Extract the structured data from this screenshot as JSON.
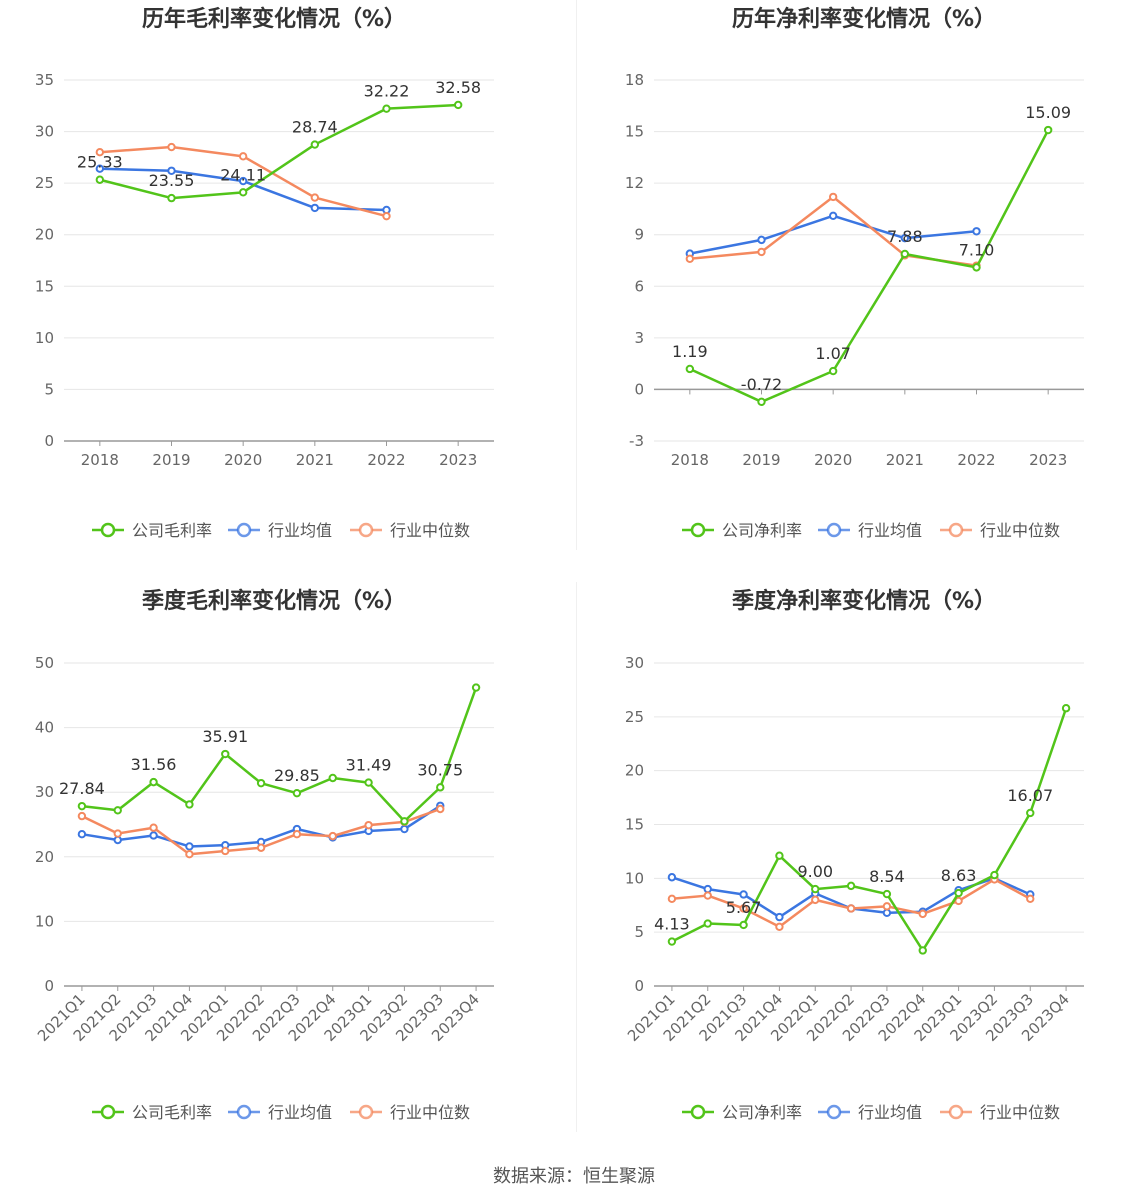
{
  "footer": {
    "source": "数据来源：恒生聚源"
  },
  "colors": {
    "company": "#52c41a",
    "industry_avg": "#3b76e1",
    "industry_median": "#f4895f",
    "grid": "#e6e6e6",
    "axis": "#999999",
    "text": "#666666"
  },
  "chart_data": [
    {
      "type": "line",
      "title": "历年毛利率变化情况（%）",
      "categories": [
        "2018",
        "2019",
        "2020",
        "2021",
        "2022",
        "2023"
      ],
      "ylim": [
        0,
        35
      ],
      "yticks": [
        0,
        5,
        10,
        15,
        20,
        25,
        30,
        35
      ],
      "legend_position": "bottom",
      "series": [
        {
          "name": "公司毛利率",
          "color": "#52c41a",
          "values": [
            25.33,
            23.55,
            24.11,
            28.74,
            32.22,
            32.58
          ],
          "labels": [
            "25.33",
            "23.55",
            "24.11",
            "28.74",
            "32.22",
            "32.58"
          ]
        },
        {
          "name": "行业均值",
          "color": "#3b76e1",
          "values": [
            26.4,
            26.2,
            25.2,
            22.6,
            22.4,
            null
          ]
        },
        {
          "name": "行业中位数",
          "color": "#f4895f",
          "values": [
            28.0,
            28.5,
            27.6,
            23.6,
            21.8,
            null
          ]
        }
      ]
    },
    {
      "type": "line",
      "title": "历年净利率变化情况（%）",
      "categories": [
        "2018",
        "2019",
        "2020",
        "2021",
        "2022",
        "2023"
      ],
      "ylim": [
        -3,
        18
      ],
      "yticks": [
        -3,
        0,
        3,
        6,
        9,
        12,
        15,
        18
      ],
      "legend_position": "bottom",
      "series": [
        {
          "name": "公司净利率",
          "color": "#52c41a",
          "values": [
            1.19,
            -0.72,
            1.07,
            7.88,
            7.1,
            15.09
          ],
          "labels": [
            "1.19",
            "-0.72",
            "1.07",
            "7.88",
            "7.10",
            "15.09"
          ]
        },
        {
          "name": "行业均值",
          "color": "#3b76e1",
          "values": [
            7.9,
            8.7,
            10.1,
            8.8,
            9.2,
            null
          ]
        },
        {
          "name": "行业中位数",
          "color": "#f4895f",
          "values": [
            7.6,
            8.0,
            11.2,
            7.8,
            7.2,
            null
          ]
        }
      ]
    },
    {
      "type": "line",
      "title": "季度毛利率变化情况（%）",
      "categories": [
        "2021Q1",
        "2021Q2",
        "2021Q3",
        "2021Q4",
        "2022Q1",
        "2022Q2",
        "2022Q3",
        "2022Q4",
        "2023Q1",
        "2023Q2",
        "2023Q3",
        "2023Q4"
      ],
      "ylim": [
        0,
        50
      ],
      "yticks": [
        0,
        10,
        20,
        30,
        40,
        50
      ],
      "legend_position": "bottom",
      "series": [
        {
          "name": "公司毛利率",
          "color": "#52c41a",
          "values": [
            27.84,
            27.2,
            31.56,
            28.1,
            35.91,
            31.4,
            29.85,
            32.2,
            31.49,
            25.5,
            30.75,
            46.2
          ],
          "labels": [
            "27.84",
            null,
            "31.56",
            null,
            "35.91",
            null,
            "29.85",
            null,
            "31.49",
            null,
            "30.75",
            null
          ]
        },
        {
          "name": "行业均值",
          "color": "#3b76e1",
          "values": [
            23.5,
            22.6,
            23.3,
            21.6,
            21.8,
            22.3,
            24.3,
            23.0,
            24.0,
            24.3,
            27.9,
            null
          ]
        },
        {
          "name": "行业中位数",
          "color": "#f4895f",
          "values": [
            26.3,
            23.6,
            24.5,
            20.4,
            20.9,
            21.4,
            23.5,
            23.2,
            24.9,
            25.4,
            27.4,
            null
          ]
        }
      ]
    },
    {
      "type": "line",
      "title": "季度净利率变化情况（%）",
      "categories": [
        "2021Q1",
        "2021Q2",
        "2021Q3",
        "2021Q4",
        "2022Q1",
        "2022Q2",
        "2022Q3",
        "2022Q4",
        "2023Q1",
        "2023Q2",
        "2023Q3",
        "2023Q4"
      ],
      "ylim": [
        0,
        30
      ],
      "yticks": [
        0,
        5,
        10,
        15,
        20,
        25,
        30
      ],
      "legend_position": "bottom",
      "series": [
        {
          "name": "公司净利率",
          "color": "#52c41a",
          "values": [
            4.13,
            5.8,
            5.67,
            12.1,
            9.0,
            9.3,
            8.54,
            3.3,
            8.63,
            10.3,
            16.07,
            25.8
          ],
          "labels": [
            "4.13",
            null,
            "5.67",
            null,
            "9.00",
            null,
            "8.54",
            null,
            "8.63",
            null,
            "16.07",
            null
          ]
        },
        {
          "name": "行业均值",
          "color": "#3b76e1",
          "values": [
            10.1,
            9.0,
            8.5,
            6.4,
            8.6,
            7.2,
            6.8,
            6.9,
            8.9,
            10.0,
            8.5,
            null
          ]
        },
        {
          "name": "行业中位数",
          "color": "#f4895f",
          "values": [
            8.1,
            8.4,
            7.2,
            5.5,
            8.0,
            7.2,
            7.4,
            6.7,
            7.9,
            9.9,
            8.1,
            null
          ]
        }
      ]
    }
  ]
}
